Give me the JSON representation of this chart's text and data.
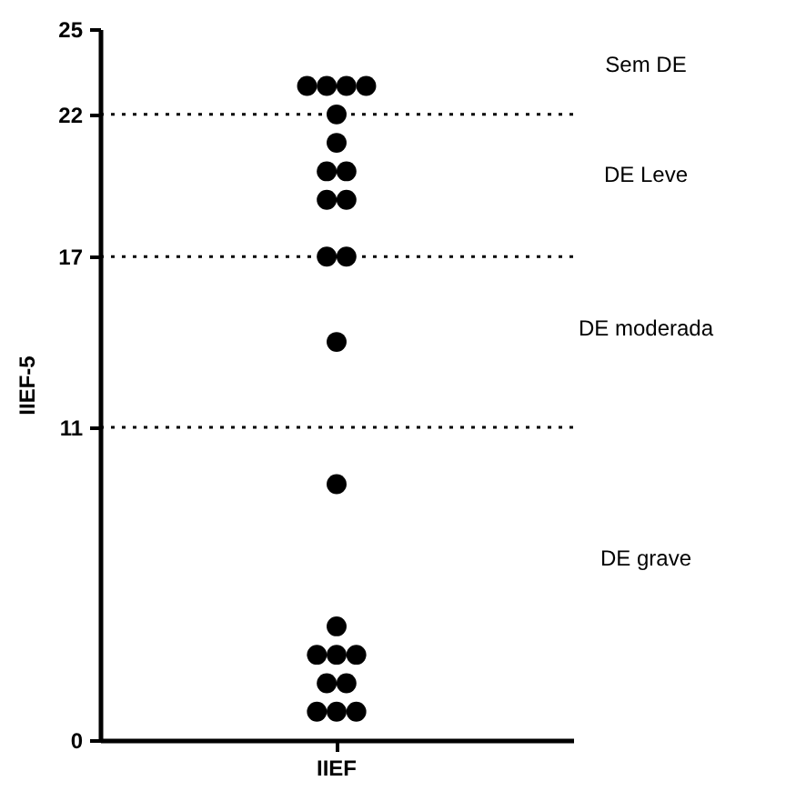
{
  "chart_data": {
    "type": "scatter",
    "ylabel": "IIEF-5",
    "categories": [
      "IIEF"
    ],
    "series": [
      {
        "color": "#000000",
        "x": [
          "IIEF",
          "IIEF",
          "IIEF",
          "IIEF",
          "IIEF",
          "IIEF",
          "IIEF",
          "IIEF",
          "IIEF",
          "IIEF",
          "IIEF",
          "IIEF",
          "IIEF",
          "IIEF",
          "IIEF",
          "IIEF",
          "IIEF",
          "IIEF",
          "IIEF",
          "IIEF",
          "IIEF",
          "IIEF",
          "IIEF"
        ],
        "values": [
          23,
          23,
          23,
          23,
          22,
          21,
          20,
          20,
          19,
          19,
          17,
          17,
          14,
          9,
          4,
          3,
          3,
          3,
          2,
          2,
          1,
          1,
          1
        ]
      }
    ],
    "ylim": [
      0,
      25
    ],
    "yticks": [
      0,
      11,
      17,
      22,
      25
    ],
    "marker": "circle",
    "grid": false,
    "legend": false,
    "ref_lines": [
      {
        "axis": "y",
        "value": 22,
        "line_style": "dotted"
      },
      {
        "axis": "y",
        "value": 17,
        "line_style": "dotted"
      },
      {
        "axis": "y",
        "value": 11,
        "line_style": "dotted"
      }
    ],
    "annotations": [
      "Sem DE",
      "DE Leve",
      "DE moderada",
      "DE grave"
    ]
  }
}
